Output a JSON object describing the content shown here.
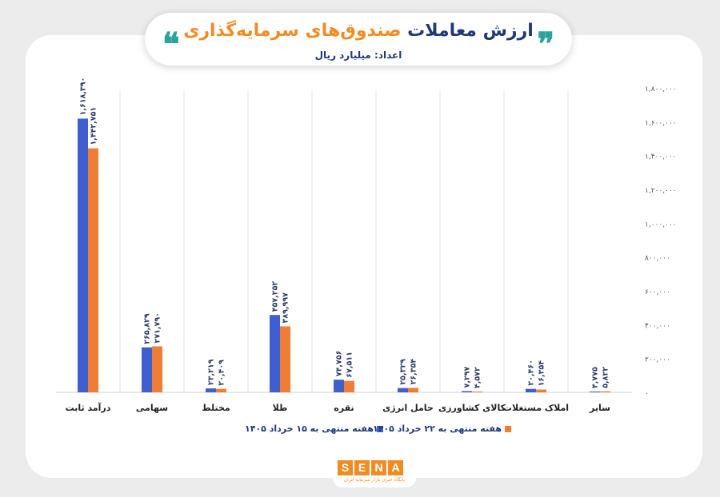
{
  "header": {
    "title_main": "ارزش معاملات",
    "title_accent": "صندوق‌های سرمایه‌گذاری",
    "unit": "اعداد: میلیارد ریال",
    "quote_left": "❝",
    "quote_right": "❞"
  },
  "brand": {
    "letters": [
      "S",
      "E",
      "N",
      "A"
    ],
    "tagline": "پایگاه خبری بازار سرمایه ایران"
  },
  "colors": {
    "series1": "#3f5fd1",
    "series2": "#ee7e35",
    "title": "#1d3a78",
    "accent": "#f08c23"
  },
  "chart_data": {
    "type": "bar",
    "categories": [
      "درآمد ثابت",
      "سهامی",
      "مختلط",
      "طلا",
      "نقره",
      "حامل انرژی",
      "کالای کشاورزی",
      "املاک مستغلات",
      "سایر"
    ],
    "series": [
      {
        "name": "هفته منتهی به ۱۵ خرداد ۱۴۰۵",
        "values": [
          1618390,
          265829,
          23219,
          457252,
          74756,
          25329,
          7297,
          20460,
          4775
        ],
        "labels": [
          "۱,۶۱۸,۳۹۰",
          "۲۶۵,۸۲۹",
          "۲۳,۲۱۹",
          "۴۵۷,۲۵۲",
          "۷۴,۷۵۶",
          "۲۵,۳۲۹",
          "۷,۲۹۷",
          "۲۰,۴۶۰",
          "۴,۷۷۵"
        ]
      },
      {
        "name": "هفته منتهی به ۲۲ خرداد ۱۴۰۵",
        "values": [
          1442751,
          271790,
          20409,
          389997,
          67511,
          26354,
          4572,
          16354,
          5822
        ],
        "labels": [
          "۱,۴۴۲,۷۵۱",
          "۲۷۱,۷۹۰",
          "۲۰,۴۰۹",
          "۳۸۹,۹۹۷",
          "۶۷,۵۱۱",
          "۲۶,۳۵۴",
          "۴,۵۷۲",
          "۱۶,۳۵۴",
          "۵,۸۲۲"
        ]
      }
    ],
    "ylim": [
      0,
      1800000
    ],
    "yticks": [
      0,
      200000,
      400000,
      600000,
      800000,
      1000000,
      1200000,
      1400000,
      1600000,
      1800000
    ],
    "ytick_labels": [
      "۰",
      "۲۰۰,۰۰۰",
      "۴۰۰,۰۰۰",
      "۶۰۰,۰۰۰",
      "۸۰۰,۰۰۰",
      "۱,۰۰۰,۰۰۰",
      "۱,۲۰۰,۰۰۰",
      "۱,۴۰۰,۰۰۰",
      "۱,۶۰۰,۰۰۰",
      "۱,۸۰۰,۰۰۰"
    ],
    "yaxis_side": "right",
    "grid": "vertical separators",
    "legend_position": "bottom"
  }
}
